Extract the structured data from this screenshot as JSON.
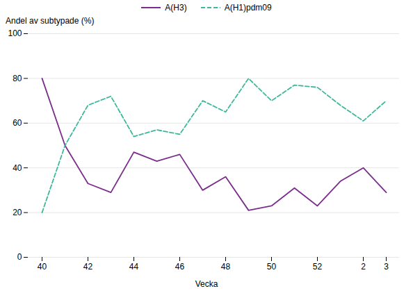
{
  "chart_data": {
    "type": "line",
    "xlabel": "Vecka",
    "ylabel": "Andel av subtypade (%)",
    "categories": [
      "40",
      null,
      "42",
      null,
      "44",
      null,
      "46",
      null,
      "48",
      null,
      "50",
      null,
      "52",
      null,
      "2",
      "3"
    ],
    "series": [
      {
        "name": "A(H3)",
        "color": "#7B2D8B",
        "line_style": "solid",
        "values": [
          80,
          50,
          33,
          29,
          47,
          43,
          46,
          30,
          36,
          21,
          23,
          31,
          23,
          34,
          40,
          29
        ]
      },
      {
        "name": "A(H1)pdm09",
        "color": "#3DB89A",
        "line_style": "dashed",
        "values": [
          20,
          50,
          68,
          72,
          54,
          57,
          55,
          70,
          65,
          80,
          70,
          77,
          76,
          68,
          61,
          70
        ]
      }
    ],
    "ylim": [
      0,
      100
    ],
    "yticks": [
      0,
      20,
      40,
      60,
      80,
      100
    ],
    "grid": true,
    "legend": "top"
  }
}
